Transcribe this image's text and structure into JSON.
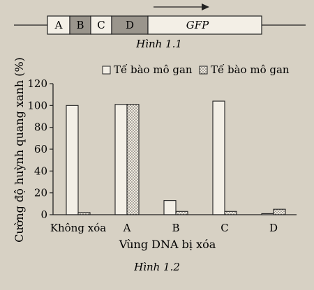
{
  "figure1": {
    "segments": [
      "A",
      "B",
      "C",
      "D",
      "GFP"
    ],
    "caption": "Hình 1.1"
  },
  "chart_data": {
    "type": "bar",
    "categories": [
      "Không xóa",
      "A",
      "B",
      "C",
      "D"
    ],
    "series": [
      {
        "name": "Tế bào mô gan",
        "fill": "white",
        "values": [
          100,
          101,
          13,
          104,
          1
        ]
      },
      {
        "name": "Tế bào mô gan",
        "fill": "dotted",
        "values": [
          2,
          101,
          3,
          3,
          5
        ]
      }
    ],
    "xlabel": "Vùng DNA bị xóa",
    "ylabel": "Cường độ huỳnh quang xanh (%)",
    "ylim": [
      0,
      120
    ],
    "yticks": [
      0,
      20,
      40,
      60,
      80,
      100,
      120
    ],
    "legend_position": "top",
    "grid": false,
    "caption": "Hình 1.2"
  }
}
